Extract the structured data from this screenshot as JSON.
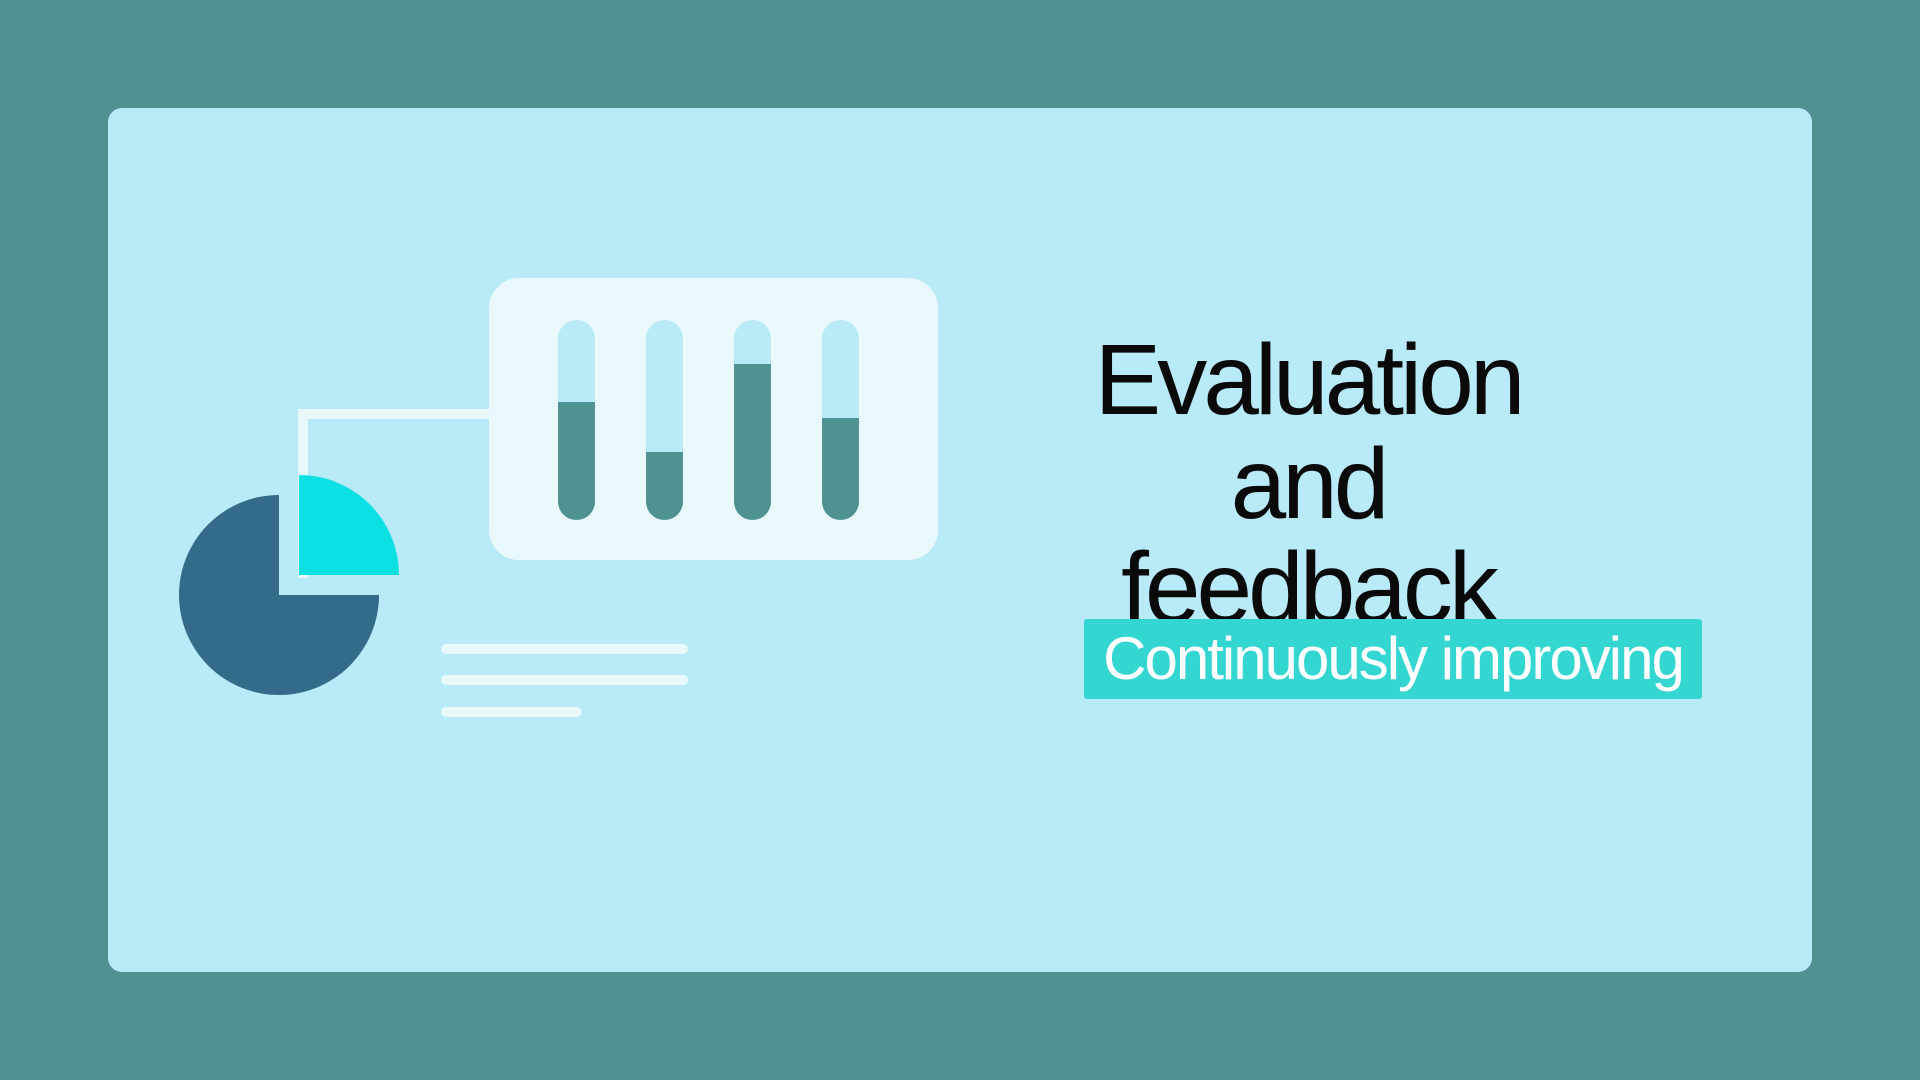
{
  "slide": {
    "title_line1": "Evaluation and",
    "title_line2": "feedback",
    "tagline": "Continuously improving"
  },
  "colors": {
    "frame": "#4e9291",
    "card": "#b8eaf7",
    "panel": "#e9f8fb",
    "bar_fill": "#4e9291",
    "pie_dark": "#356b8a",
    "pie_accent": "#0de0e2",
    "tagline_bg": "#33d6d1",
    "title_text": "#0a0a0a"
  },
  "illustration": {
    "bar_levels": [
      0.59,
      0.34,
      0.78,
      0.51
    ],
    "pie_accent_fraction": 0.25
  }
}
